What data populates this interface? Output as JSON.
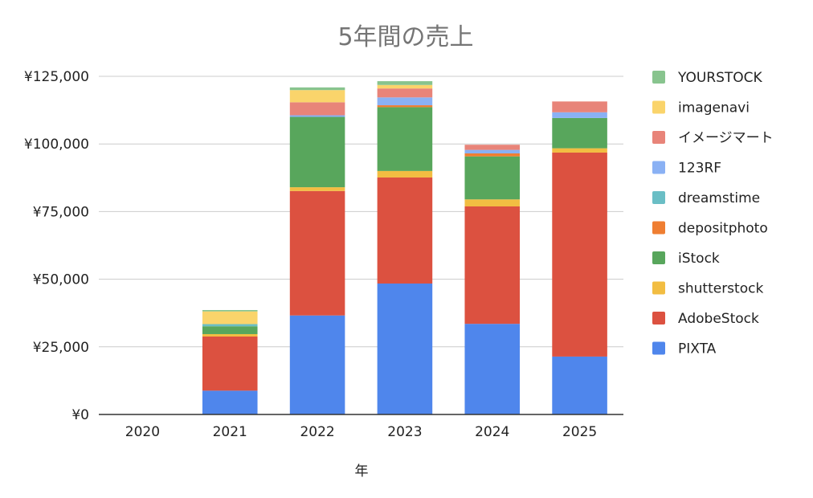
{
  "chart_data": {
    "type": "bar",
    "stacked": true,
    "title": "5年間の売上",
    "xlabel": "年",
    "ylabel": "",
    "categories": [
      "2020",
      "2021",
      "2022",
      "2023",
      "2024",
      "2025"
    ],
    "ylim": [
      0,
      125000
    ],
    "yticks": [
      0,
      25000,
      50000,
      75000,
      100000,
      125000
    ],
    "ytick_labels": [
      "¥0",
      "¥25,000",
      "¥50,000",
      "¥75,000",
      "¥100,000",
      "¥125,000"
    ],
    "grid": true,
    "legend_position": "right",
    "series": [
      {
        "name": "PIXTA",
        "color": "#4f86ec",
        "values": [
          0,
          8800,
          36600,
          48400,
          33500,
          21400
        ]
      },
      {
        "name": "AdobeStock",
        "color": "#dc5140",
        "values": [
          0,
          20000,
          46000,
          39200,
          43400,
          75400
        ]
      },
      {
        "name": "shutterstock",
        "color": "#f2bd42",
        "values": [
          0,
          900,
          1400,
          2400,
          2600,
          1600
        ]
      },
      {
        "name": "iStock",
        "color": "#58a65c",
        "values": [
          0,
          2900,
          26000,
          23600,
          15900,
          11200
        ]
      },
      {
        "name": "depositphoto",
        "color": "#ef7e32",
        "values": [
          0,
          0,
          0,
          700,
          1100,
          0
        ]
      },
      {
        "name": "dreamstime",
        "color": "#6abec5",
        "values": [
          0,
          800,
          0,
          0,
          0,
          0
        ]
      },
      {
        "name": "123RF",
        "color": "#8ab1f4",
        "values": [
          0,
          0,
          600,
          2900,
          1300,
          2100
        ]
      },
      {
        "name": "イメージマート",
        "color": "#e88479",
        "values": [
          0,
          0,
          4800,
          3300,
          1900,
          4000
        ]
      },
      {
        "name": "imagenavi",
        "color": "#fad46b",
        "values": [
          0,
          4700,
          4500,
          1300,
          0,
          0
        ]
      },
      {
        "name": "YOURSTOCK",
        "color": "#88c48e",
        "values": [
          0,
          500,
          1000,
          1400,
          0,
          0
        ]
      }
    ]
  }
}
